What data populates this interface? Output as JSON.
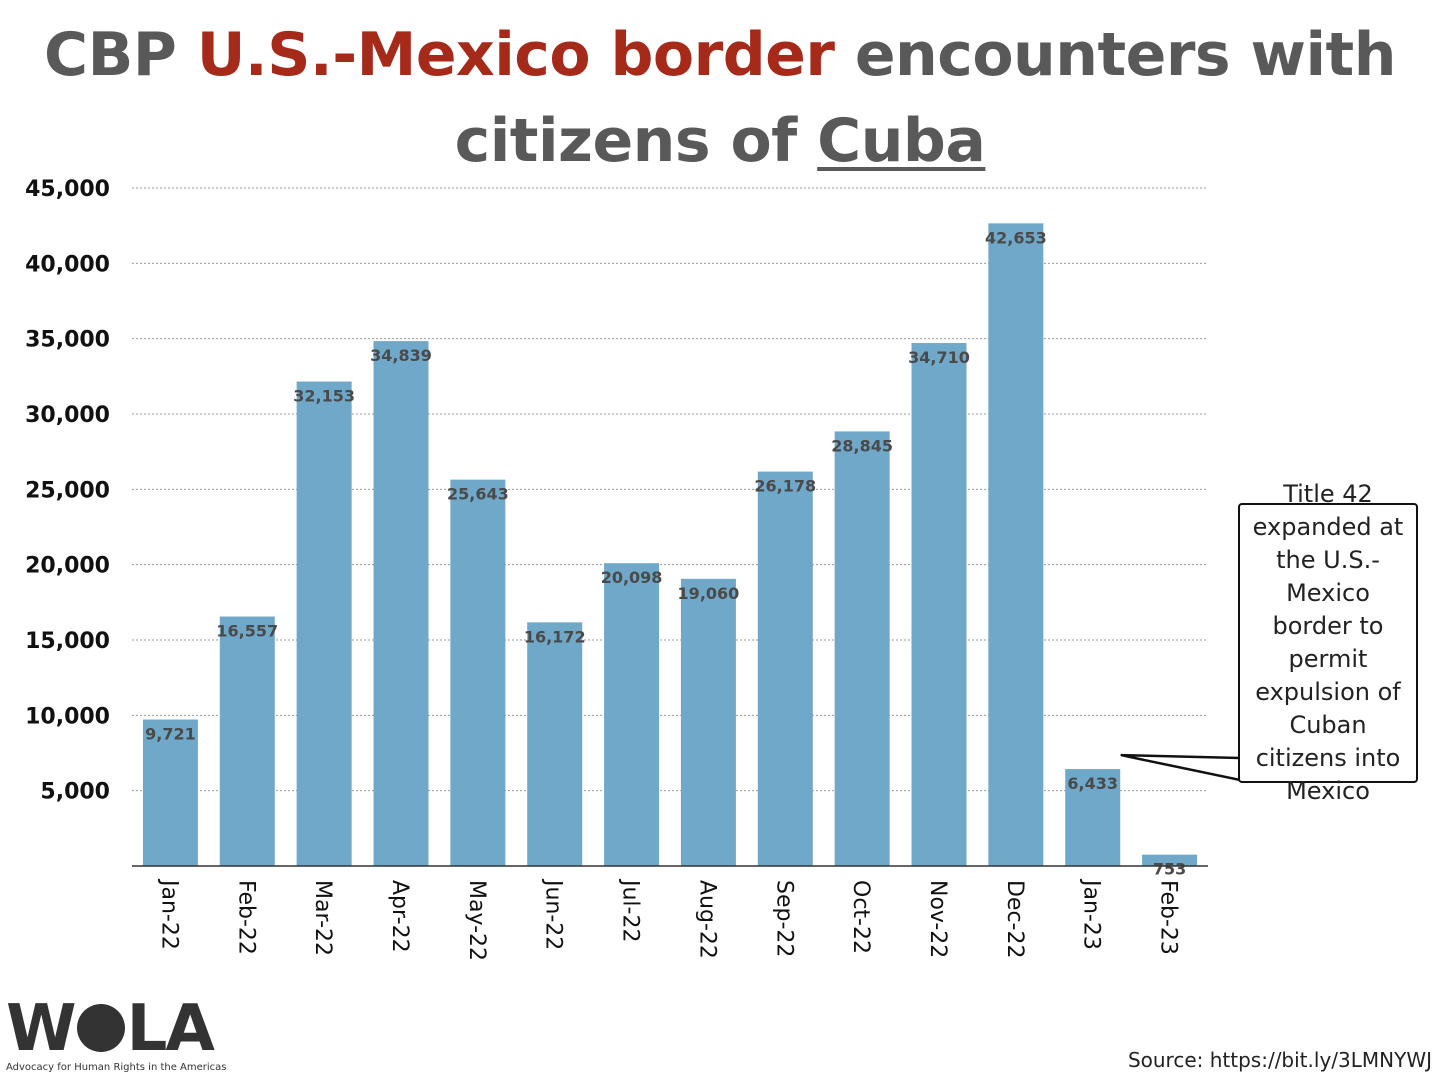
{
  "chart_data": {
    "type": "bar",
    "title_parts": {
      "p1": "CBP ",
      "p2": "U.S.-Mexico border",
      "p3": " encounters with",
      "p4": "citizens of ",
      "p5": "Cuba"
    },
    "categories": [
      "Jan-22",
      "Feb-22",
      "Mar-22",
      "Apr-22",
      "May-22",
      "Jun-22",
      "Jul-22",
      "Aug-22",
      "Sep-22",
      "Oct-22",
      "Nov-22",
      "Dec-22",
      "Jan-23",
      "Feb-23"
    ],
    "values": [
      9721,
      16557,
      32153,
      34839,
      25643,
      16172,
      20098,
      19060,
      26178,
      28845,
      34710,
      42653,
      6433,
      753
    ],
    "value_labels": [
      "9,721",
      "16,557",
      "32,153",
      "34,839",
      "25,643",
      "16,172",
      "20,098",
      "19,060",
      "26,178",
      "28,845",
      "34,710",
      "42,653",
      "6,433",
      "753"
    ],
    "y_ticks": [
      5000,
      10000,
      15000,
      20000,
      25000,
      30000,
      35000,
      40000,
      45000
    ],
    "y_tick_labels": [
      "5,000",
      "10,000",
      "15,000",
      "20,000",
      "25,000",
      "30,000",
      "35,000",
      "40,000",
      "45,000"
    ],
    "ylim": [
      0,
      45000
    ],
    "grid": true,
    "bar_color": "#6fa8c8",
    "accent_color": "#a52a1a",
    "annotation": {
      "text": "Title 42 expanded at the U.S.-Mexico border to permit expulsion of Cuban citizens into Mexico",
      "target": "Jan-23"
    }
  },
  "branding": {
    "logo_letters_left": "W",
    "logo_letters_right": "LA",
    "logo_tagline": "Advocacy for Human Rights in the Americas",
    "logo_icon": "wola-circle-icon"
  },
  "source": "Source: https://bit.ly/3LMNYWJ"
}
